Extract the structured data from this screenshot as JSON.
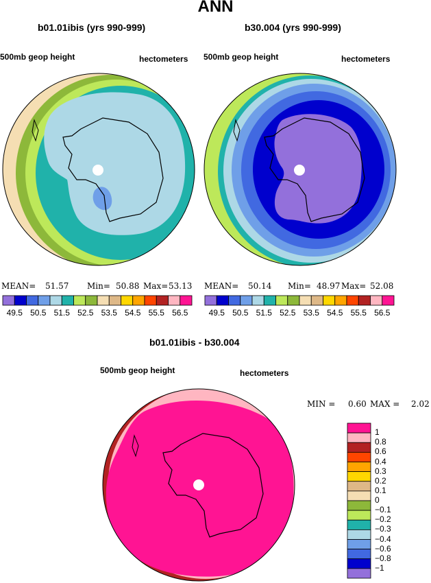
{
  "main_title": "ANN",
  "left_panel": {
    "case": "b01.01ibis (yrs 990-999)",
    "variable": "500mb geop height",
    "units": "hectometers",
    "stats": {
      "mean_label": "MEAN=",
      "mean": "51.57",
      "min_label": "Min=",
      "min": "50.88",
      "max_label": "Max=",
      "max": "53.13"
    }
  },
  "right_panel": {
    "case": "b30.004 (yrs 990-999)",
    "variable": "500mb geop height",
    "units": "hectometers",
    "stats": {
      "mean_label": "MEAN=",
      "mean": "50.14",
      "min_label": "Min=",
      "min": "48.97",
      "max_label": "Max=",
      "max": "52.08"
    }
  },
  "diff_panel": {
    "title": "b01.01ibis - b30.004",
    "variable": "500mb geop height",
    "units": "hectometers",
    "stats": {
      "min_label": "MIN =",
      "min": "0.60",
      "max_label": "MAX =",
      "max": "2.02"
    }
  },
  "abs_colorbar": {
    "colors": [
      "#9370db",
      "#0000cd",
      "#4169e1",
      "#6f9fe8",
      "#add8e6",
      "#20b2aa",
      "#bde85a",
      "#8db83a",
      "#f5deb3",
      "#deb887",
      "#ffd700",
      "#ffa500",
      "#ff4500",
      "#b22222",
      "#ffb6c1",
      "#ff1493"
    ],
    "labels": [
      "49.5",
      "50.5",
      "51.5",
      "52.5",
      "53.5",
      "54.5",
      "55.5",
      "56.5"
    ]
  },
  "diff_colorbar": {
    "colors_top_to_bottom": [
      "#ff1493",
      "#ffb6c1",
      "#b22222",
      "#ff4500",
      "#ffa500",
      "#ffd700",
      "#deb887",
      "#f5deb3",
      "#8db83a",
      "#bde85a",
      "#20b2aa",
      "#add8e6",
      "#6f9fe8",
      "#4169e1",
      "#0000cd",
      "#9370db"
    ],
    "labels_top_to_bottom": [
      "1",
      "0.8",
      "0.6",
      "0.4",
      "0.3",
      "0.2",
      "0.1",
      "0",
      "−0.1",
      "−0.2",
      "−0.3",
      "−0.4",
      "−0.6",
      "−0.8",
      "−1"
    ]
  }
}
